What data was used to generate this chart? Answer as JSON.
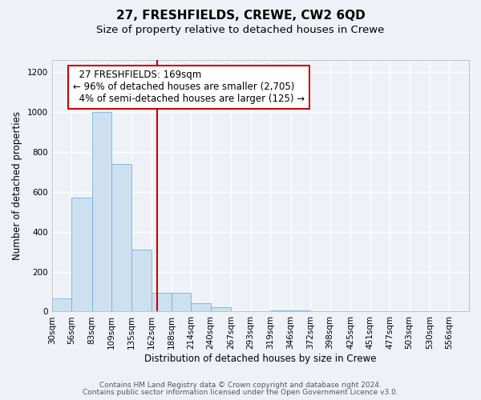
{
  "title": "27, FRESHFIELDS, CREWE, CW2 6QD",
  "subtitle": "Size of property relative to detached houses in Crewe",
  "xlabel": "Distribution of detached houses by size in Crewe",
  "ylabel": "Number of detached properties",
  "bar_color": "#cde0f0",
  "bar_edge_color": "#7ab0d4",
  "bin_labels": [
    "30sqm",
    "56sqm",
    "83sqm",
    "109sqm",
    "135sqm",
    "162sqm",
    "188sqm",
    "214sqm",
    "240sqm",
    "267sqm",
    "293sqm",
    "319sqm",
    "346sqm",
    "372sqm",
    "398sqm",
    "425sqm",
    "451sqm",
    "477sqm",
    "503sqm",
    "530sqm",
    "556sqm"
  ],
  "bar_heights": [
    65,
    570,
    1000,
    740,
    310,
    95,
    95,
    40,
    20,
    0,
    0,
    5,
    5,
    0,
    0,
    0,
    0,
    0,
    0,
    0,
    0
  ],
  "bin_edges": [
    30,
    56,
    83,
    109,
    135,
    162,
    188,
    214,
    240,
    267,
    293,
    319,
    346,
    372,
    398,
    425,
    451,
    477,
    503,
    530,
    556,
    582
  ],
  "property_size": 169,
  "vline_color": "#cc0000",
  "annotation_line1": "  27 FRESHFIELDS: 169sqm",
  "annotation_line2": "← 96% of detached houses are smaller (2,705)",
  "annotation_line3": "  4% of semi-detached houses are larger (125) →",
  "annotation_box_color": "#ffffff",
  "annotation_box_edge": "#cc0000",
  "ylim": [
    0,
    1260
  ],
  "yticks": [
    0,
    200,
    400,
    600,
    800,
    1000,
    1200
  ],
  "footer_line1": "Contains HM Land Registry data © Crown copyright and database right 2024.",
  "footer_line2": "Contains public sector information licensed under the Open Government Licence v3.0.",
  "background_color": "#eef2f7",
  "grid_color": "#ffffff",
  "title_fontsize": 11,
  "subtitle_fontsize": 9.5,
  "axis_label_fontsize": 8.5,
  "tick_fontsize": 7.5,
  "footer_fontsize": 6.5,
  "annotation_fontsize": 8.5
}
